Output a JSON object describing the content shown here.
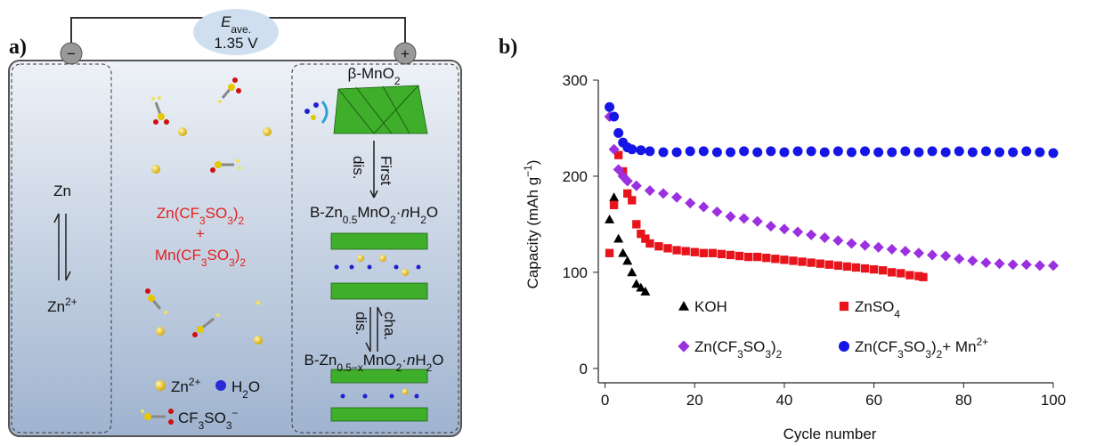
{
  "panel_a": {
    "label": "a)",
    "voltage_symbol": [
      {
        "i": "E"
      },
      {
        "sub": "ave."
      }
    ],
    "voltage": "1.35 V",
    "negative": "−",
    "positive": "+",
    "anode": "Zn",
    "anode_ion": [
      "Zn",
      {
        "sup": "2+"
      }
    ],
    "electrolyte_1": [
      "Zn(CF",
      {
        "sub": "3"
      },
      "SO",
      {
        "sub": "3"
      },
      ")",
      {
        "sub": "2"
      }
    ],
    "plus": "+",
    "electrolyte_2": [
      "Mn(CF",
      {
        "sub": "3"
      },
      "SO",
      {
        "sub": "3"
      },
      ")",
      {
        "sub": "2"
      }
    ],
    "cathode": [
      "β-MnO",
      {
        "sub": "2"
      }
    ],
    "first_step": "First",
    "first_step_type": "dis.",
    "phase_1": [
      "B-Zn",
      {
        "sub": "0.5"
      },
      "MnO",
      {
        "sub": "2"
      },
      "·",
      {
        "i": "n"
      },
      "H",
      {
        "sub": "2"
      },
      "O"
    ],
    "discharge": "dis.",
    "charge": "cha.",
    "phase_2": [
      "B-Zn",
      {
        "sub": "0.5−x"
      },
      "MnO",
      {
        "sub": "2"
      },
      "·",
      {
        "i": "n"
      },
      "H",
      {
        "sub": "2"
      },
      "O"
    ],
    "legend": [
      [
        "Zn",
        {
          "sup": "2+"
        }
      ],
      [
        "H",
        {
          "sub": "2"
        },
        "O"
      ],
      [
        "CF",
        {
          "sub": "3"
        },
        "SO",
        {
          "sub": "3"
        },
        {
          "sup": "−"
        }
      ]
    ]
  },
  "chart_data": {
    "type": "scatter",
    "label": "b)",
    "xlabel": "Cycle number",
    "ylabel": [
      "Capacity (mAh g",
      {
        "sup": "−1"
      },
      ")"
    ],
    "xlim": [
      -1.5,
      100
    ],
    "ylim": [
      -15,
      300
    ],
    "xticks": [
      0,
      20,
      40,
      60,
      80,
      100
    ],
    "yticks": [
      0,
      100,
      200,
      300
    ],
    "series": [
      {
        "name": [
          "KOH"
        ],
        "color": "#000000",
        "marker": "triangle",
        "x": [
          1,
          2,
          3,
          4,
          5,
          6,
          7,
          8,
          9
        ],
        "values": [
          155,
          178,
          135,
          120,
          112,
          100,
          88,
          84,
          80
        ]
      },
      {
        "name": [
          "ZnSO",
          {
            "sub": "4"
          }
        ],
        "color": "#e8141c",
        "marker": "square",
        "x": [
          1,
          2,
          3,
          4,
          5,
          6,
          7,
          8,
          9,
          10,
          12,
          14,
          16,
          18,
          20,
          22,
          24,
          26,
          28,
          30,
          32,
          34,
          36,
          38,
          40,
          42,
          44,
          46,
          48,
          50,
          52,
          54,
          56,
          58,
          60,
          62,
          64,
          66,
          68,
          70,
          71
        ],
        "values": [
          120,
          170,
          222,
          205,
          182,
          175,
          150,
          140,
          135,
          130,
          127,
          125,
          123,
          122,
          121,
          120,
          120,
          119,
          118,
          117,
          116,
          116,
          115,
          114,
          113,
          112,
          111,
          110,
          109,
          108,
          107,
          106,
          105,
          104,
          103,
          102,
          100,
          99,
          97,
          96,
          95
        ]
      },
      {
        "name": [
          "Zn(CF",
          {
            "sub": "3"
          },
          "SO",
          {
            "sub": "3"
          },
          ")",
          {
            "sub": "2"
          }
        ],
        "color": "#9b30e0",
        "marker": "diamond",
        "x": [
          1,
          2,
          3,
          4,
          5,
          7,
          10,
          13,
          16,
          19,
          22,
          25,
          28,
          31,
          34,
          37,
          40,
          43,
          46,
          49,
          52,
          55,
          58,
          61,
          64,
          67,
          70,
          73,
          76,
          79,
          82,
          85,
          88,
          91,
          94,
          97,
          100
        ],
        "values": [
          262,
          228,
          207,
          200,
          195,
          190,
          185,
          182,
          178,
          172,
          168,
          163,
          158,
          156,
          153,
          148,
          145,
          142,
          139,
          136,
          133,
          130,
          128,
          126,
          124,
          122,
          120,
          118,
          117,
          114,
          112,
          110,
          109,
          108,
          108,
          107,
          107
        ]
      },
      {
        "name": [
          "Zn(CF",
          {
            "sub": "3"
          },
          "SO",
          {
            "sub": "3"
          },
          ")",
          {
            "sub": "2"
          },
          "+ Mn",
          {
            "sup": "2+"
          }
        ],
        "color": "#1515e6",
        "marker": "circle",
        "x": [
          1,
          2,
          3,
          4,
          5,
          6,
          8,
          10,
          13,
          16,
          19,
          22,
          25,
          28,
          31,
          34,
          37,
          40,
          43,
          46,
          49,
          52,
          55,
          58,
          61,
          64,
          67,
          70,
          73,
          76,
          79,
          82,
          85,
          88,
          91,
          94,
          97,
          100
        ],
        "values": [
          272,
          262,
          245,
          235,
          230,
          228,
          227,
          226,
          225,
          225,
          226,
          226,
          225,
          225,
          226,
          225,
          226,
          225,
          226,
          226,
          225,
          226,
          225,
          226,
          225,
          225,
          226,
          225,
          226,
          225,
          226,
          225,
          226,
          225,
          225,
          226,
          225,
          224
        ]
      }
    ]
  }
}
